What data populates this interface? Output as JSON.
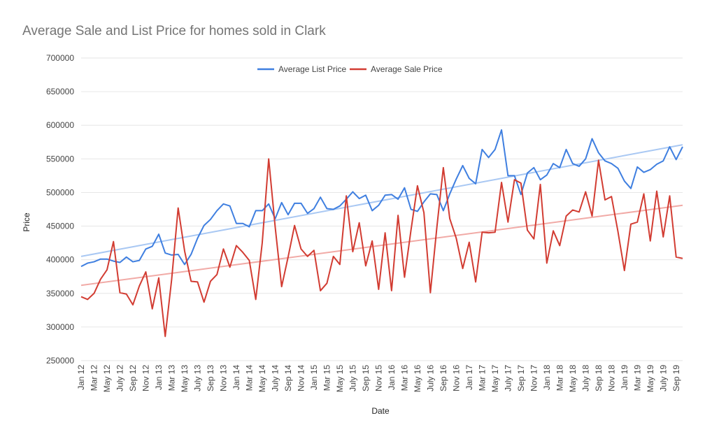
{
  "chart_data": {
    "type": "line",
    "title": "Average Sale and List Price for homes sold in Clark",
    "xlabel": "Date",
    "ylabel": "Price",
    "ylim": [
      250000,
      700000
    ],
    "yticks": [
      "250000",
      "300000",
      "350000",
      "400000",
      "450000",
      "500000",
      "550000",
      "600000",
      "650000",
      "700000"
    ],
    "xticks": [
      "Jan 12",
      "Mar 12",
      "May 12",
      "July 12",
      "Sep 12",
      "Nov 12",
      "Jan 13",
      "Mar 13",
      "May 13",
      "July 13",
      "Sep 13",
      "Nov 13",
      "Jan 14",
      "Mar 14",
      "May 14",
      "July 14",
      "Sep 14",
      "Nov 14",
      "Jan 15",
      "Mar 15",
      "May 15",
      "July 15",
      "Sep 15",
      "Nov 15",
      "Jan 16",
      "Mar 16",
      "May 16",
      "July 16",
      "Sep 16",
      "Nov 16",
      "Jan 17",
      "Mar 17",
      "May 17",
      "July 17",
      "Sep 17",
      "Nov 17",
      "Jan 18",
      "Mar 18",
      "May 18",
      "July 18",
      "Sep 18",
      "Nov 18",
      "Jan 19",
      "Mar 19",
      "May 19",
      "July 19",
      "Sep 19"
    ],
    "grid": true,
    "legend": "top-center",
    "trendlines": true,
    "series": [
      {
        "name": "Average List Price",
        "color": "#3f7fe0",
        "trend_color": "#a9c8f3",
        "trend": [
          405000,
          571000
        ],
        "values": [
          390000,
          395000,
          397000,
          401000,
          401000,
          398000,
          396000,
          404000,
          397000,
          399000,
          416000,
          420000,
          438000,
          410000,
          407000,
          408000,
          393000,
          408000,
          432000,
          451000,
          460000,
          473000,
          483000,
          480000,
          454000,
          454000,
          449000,
          473000,
          473000,
          483000,
          461000,
          485000,
          467000,
          484000,
          484000,
          469000,
          476000,
          493000,
          476000,
          475000,
          480000,
          490000,
          501000,
          491000,
          496000,
          473000,
          481000,
          496000,
          497000,
          490000,
          507000,
          475000,
          472000,
          486000,
          498000,
          497000,
          473000,
          498000,
          520000,
          540000,
          521000,
          513000,
          564000,
          552000,
          564000,
          593000,
          525000,
          525000,
          497000,
          529000,
          537000,
          519000,
          526000,
          543000,
          537000,
          564000,
          543000,
          539000,
          550000,
          580000,
          559000,
          547000,
          543000,
          536000,
          517000,
          506000,
          538000,
          530000,
          534000,
          542000,
          547000,
          568000,
          549000,
          568000
        ]
      },
      {
        "name": "Average Sale Price",
        "color": "#d23c32",
        "trend_color": "#f1aaa6",
        "trend": [
          362000,
          481000
        ],
        "values": [
          345000,
          341000,
          350000,
          371000,
          385000,
          427000,
          351000,
          349000,
          333000,
          361000,
          382000,
          327000,
          373000,
          286000,
          371000,
          477000,
          413000,
          368000,
          367000,
          337000,
          368000,
          378000,
          416000,
          389000,
          421000,
          411000,
          399000,
          341000,
          425000,
          550000,
          449000,
          360000,
          404000,
          451000,
          416000,
          405000,
          414000,
          354000,
          365000,
          405000,
          393000,
          495000,
          412000,
          455000,
          391000,
          428000,
          356000,
          440000,
          354000,
          466000,
          374000,
          444000,
          510000,
          470000,
          351000,
          448000,
          537000,
          461000,
          432000,
          387000,
          426000,
          367000,
          441000,
          440000,
          441000,
          515000,
          456000,
          519000,
          514000,
          444000,
          431000,
          512000,
          395000,
          443000,
          421000,
          465000,
          474000,
          471000,
          501000,
          465000,
          548000,
          489000,
          494000,
          442000,
          384000,
          453000,
          456000,
          498000,
          428000,
          502000,
          434000,
          495000,
          404000,
          402000
        ]
      }
    ]
  }
}
